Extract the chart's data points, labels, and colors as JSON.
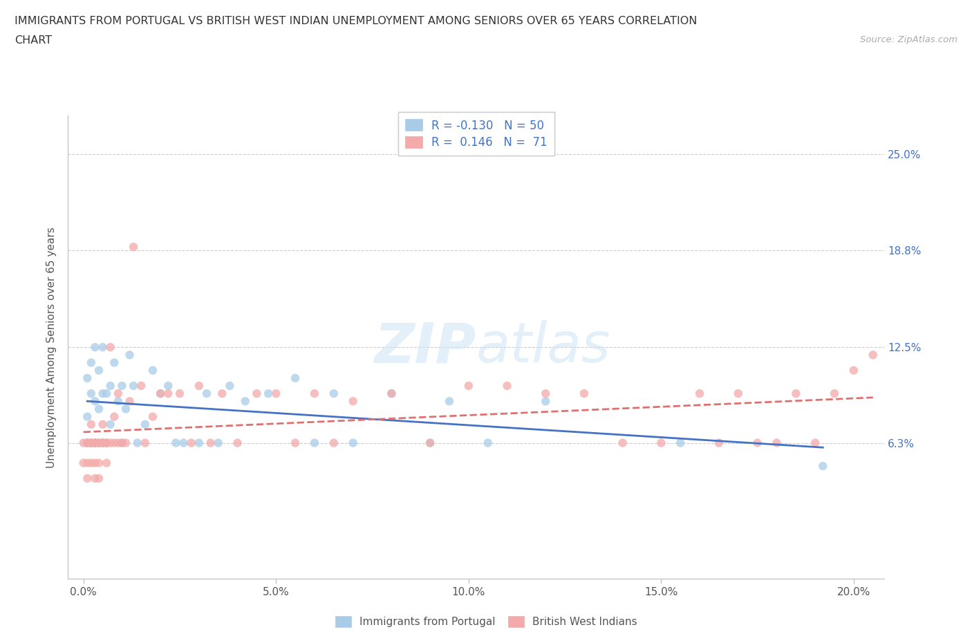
{
  "title_line1": "IMMIGRANTS FROM PORTUGAL VS BRITISH WEST INDIAN UNEMPLOYMENT AMONG SENIORS OVER 65 YEARS CORRELATION",
  "title_line2": "CHART",
  "source_text": "Source: ZipAtlas.com",
  "ylabel": "Unemployment Among Seniors over 65 years",
  "R_portugal": -0.13,
  "N_portugal": 50,
  "R_bwi": 0.146,
  "N_bwi": 71,
  "color_portugal": "#a8cce8",
  "color_bwi": "#f4aaaa",
  "color_portugal_line": "#4472c4",
  "color_bwi_line": "#e07070",
  "watermark_zip": "ZIP",
  "watermark_atlas": "atlas",
  "legend_label_portugal": "Immigrants from Portugal",
  "legend_label_bwi": "British West Indians",
  "xlim": [
    -0.004,
    0.208
  ],
  "ylim": [
    -0.025,
    0.275
  ],
  "x_ticks": [
    0.0,
    0.05,
    0.1,
    0.15,
    0.2
  ],
  "x_tick_labels": [
    "0.0%",
    "5.0%",
    "10.0%",
    "15.0%",
    "20.0%"
  ],
  "y_ticks": [
    0.063,
    0.125,
    0.188,
    0.25
  ],
  "y_tick_labels": [
    "6.3%",
    "12.5%",
    "18.8%",
    "25.0%"
  ],
  "port_x": [
    0.001,
    0.001,
    0.001,
    0.002,
    0.002,
    0.002,
    0.003,
    0.003,
    0.003,
    0.004,
    0.004,
    0.004,
    0.005,
    0.005,
    0.005,
    0.006,
    0.006,
    0.007,
    0.007,
    0.008,
    0.009,
    0.01,
    0.01,
    0.011,
    0.012,
    0.013,
    0.014,
    0.016,
    0.018,
    0.02,
    0.022,
    0.024,
    0.026,
    0.03,
    0.032,
    0.035,
    0.038,
    0.042,
    0.048,
    0.055,
    0.06,
    0.065,
    0.07,
    0.08,
    0.09,
    0.095,
    0.105,
    0.12,
    0.155,
    0.192
  ],
  "port_y": [
    0.063,
    0.08,
    0.105,
    0.063,
    0.095,
    0.115,
    0.063,
    0.09,
    0.125,
    0.063,
    0.085,
    0.11,
    0.063,
    0.095,
    0.125,
    0.063,
    0.095,
    0.1,
    0.075,
    0.115,
    0.09,
    0.063,
    0.1,
    0.085,
    0.12,
    0.1,
    0.063,
    0.075,
    0.11,
    0.095,
    0.1,
    0.063,
    0.063,
    0.063,
    0.095,
    0.063,
    0.1,
    0.09,
    0.095,
    0.105,
    0.063,
    0.095,
    0.063,
    0.095,
    0.063,
    0.09,
    0.063,
    0.09,
    0.063,
    0.048
  ],
  "bwi_x": [
    0.0,
    0.0,
    0.001,
    0.001,
    0.001,
    0.001,
    0.002,
    0.002,
    0.002,
    0.002,
    0.002,
    0.003,
    0.003,
    0.003,
    0.003,
    0.003,
    0.004,
    0.004,
    0.004,
    0.004,
    0.005,
    0.005,
    0.005,
    0.006,
    0.006,
    0.006,
    0.007,
    0.007,
    0.008,
    0.008,
    0.009,
    0.009,
    0.01,
    0.011,
    0.012,
    0.013,
    0.015,
    0.016,
    0.018,
    0.02,
    0.022,
    0.025,
    0.028,
    0.03,
    0.033,
    0.036,
    0.04,
    0.045,
    0.05,
    0.055,
    0.06,
    0.065,
    0.07,
    0.08,
    0.09,
    0.1,
    0.11,
    0.12,
    0.13,
    0.14,
    0.15,
    0.16,
    0.165,
    0.17,
    0.175,
    0.18,
    0.185,
    0.19,
    0.195,
    0.2,
    0.205
  ],
  "bwi_y": [
    0.063,
    0.05,
    0.063,
    0.063,
    0.04,
    0.05,
    0.063,
    0.063,
    0.075,
    0.063,
    0.05,
    0.063,
    0.063,
    0.063,
    0.05,
    0.04,
    0.063,
    0.063,
    0.05,
    0.04,
    0.063,
    0.063,
    0.075,
    0.063,
    0.063,
    0.05,
    0.063,
    0.125,
    0.063,
    0.08,
    0.063,
    0.095,
    0.063,
    0.063,
    0.09,
    0.19,
    0.1,
    0.063,
    0.08,
    0.095,
    0.095,
    0.095,
    0.063,
    0.1,
    0.063,
    0.095,
    0.063,
    0.095,
    0.095,
    0.063,
    0.095,
    0.063,
    0.09,
    0.095,
    0.063,
    0.1,
    0.1,
    0.095,
    0.095,
    0.063,
    0.063,
    0.095,
    0.063,
    0.095,
    0.063,
    0.063,
    0.095,
    0.063,
    0.095,
    0.11,
    0.12
  ]
}
